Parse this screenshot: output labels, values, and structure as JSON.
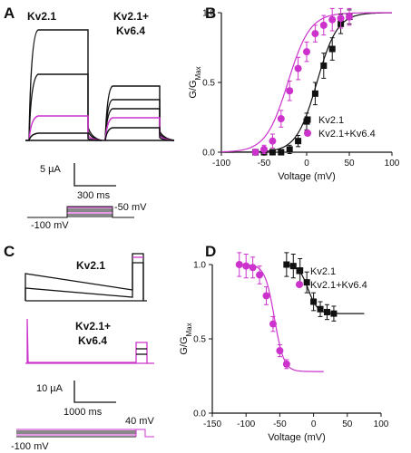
{
  "colors": {
    "kv21": "#111111",
    "kv2164": "#cc33cc",
    "axis": "#111111"
  },
  "panel_letters": [
    "A",
    "B",
    "C",
    "D"
  ],
  "traces": {
    "A": {
      "label_left": "Kv2.1",
      "label_right_1": "Kv2.1+",
      "label_right_2": "Kv6.4",
      "scale_current": "5 µA",
      "scale_time": "300 ms",
      "protocol_hold": "-100 mV",
      "protocol_step": "-50 mV"
    },
    "C": {
      "label_top": "Kv2.1",
      "label_bottom_1": "Kv2.1+",
      "label_bottom_2": "Kv6.4",
      "scale_current": "10 µA",
      "scale_time": "1000 ms",
      "protocol_hold": "-100 mV",
      "protocol_step": "40 mV"
    }
  },
  "chart_data": [
    {
      "panel": "B",
      "type": "scatter",
      "xlabel": "Voltage (mV)",
      "ylabel": "G/G",
      "ylabel_sub": "Max",
      "xlim": [
        -100,
        100
      ],
      "ylim": [
        0,
        1
      ],
      "xticks": [
        -100,
        -50,
        0,
        50,
        100
      ],
      "yticks": [
        0.0,
        0.5,
        1.0
      ],
      "xtick_labels": [
        "-100",
        "-50",
        "0",
        "50",
        "100"
      ],
      "ytick_labels": [
        "0.0",
        "0.5",
        "1.0"
      ],
      "legend_position": "lower-right",
      "series": [
        {
          "name": "Kv2.1",
          "marker": "square",
          "x": [
            -60,
            -50,
            -40,
            -30,
            -20,
            -10,
            0,
            10,
            20,
            30,
            40,
            50
          ],
          "y": [
            0.0,
            0.0,
            0.0,
            0.0,
            0.02,
            0.08,
            0.22,
            0.42,
            0.62,
            0.74,
            0.92,
            0.97
          ],
          "err": [
            0.02,
            0.02,
            0.02,
            0.02,
            0.03,
            0.04,
            0.06,
            0.08,
            0.09,
            0.08,
            0.07,
            0.05
          ]
        },
        {
          "name": "Kv2.1+Kv6.4",
          "marker": "circle",
          "x": [
            -60,
            -50,
            -40,
            -30,
            -20,
            -10,
            0,
            10,
            20,
            30,
            40,
            50
          ],
          "y": [
            0.0,
            0.02,
            0.08,
            0.24,
            0.44,
            0.6,
            0.72,
            0.85,
            0.91,
            0.95,
            0.96,
            0.97
          ],
          "err": [
            0.02,
            0.03,
            0.05,
            0.06,
            0.07,
            0.08,
            0.07,
            0.06,
            0.07,
            0.08,
            0.07,
            0.06
          ]
        }
      ]
    },
    {
      "panel": "D",
      "type": "scatter",
      "xlabel": "Voltage (mV)",
      "ylabel": "G/G",
      "ylabel_sub": "Max",
      "xlim": [
        -150,
        100
      ],
      "ylim": [
        0,
        1
      ],
      "xticks": [
        -150,
        -100,
        -50,
        0,
        50,
        100
      ],
      "yticks": [
        0.0,
        0.5,
        1.0
      ],
      "xtick_labels": [
        "-150",
        "-100",
        "-50",
        "0",
        "50",
        "100"
      ],
      "ytick_labels": [
        "0.0",
        "0.5",
        "1.0"
      ],
      "legend_position": "top-right",
      "series": [
        {
          "name": "Kv2.1",
          "marker": "square",
          "x": [
            -40,
            -30,
            -20,
            -10,
            0,
            10,
            20,
            30
          ],
          "y": [
            1.0,
            0.99,
            0.96,
            0.88,
            0.75,
            0.7,
            0.68,
            0.67
          ],
          "err": [
            0.08,
            0.08,
            0.08,
            0.07,
            0.06,
            0.05,
            0.05,
            0.05
          ]
        },
        {
          "name": "Kv2.1+Kv6.4",
          "marker": "circle",
          "x": [
            -110,
            -100,
            -90,
            -80,
            -70,
            -60,
            -50,
            -40
          ],
          "y": [
            1.0,
            0.99,
            0.98,
            0.93,
            0.79,
            0.6,
            0.42,
            0.33
          ],
          "err": [
            0.08,
            0.08,
            0.07,
            0.06,
            0.06,
            0.05,
            0.04,
            0.03
          ]
        }
      ]
    }
  ]
}
